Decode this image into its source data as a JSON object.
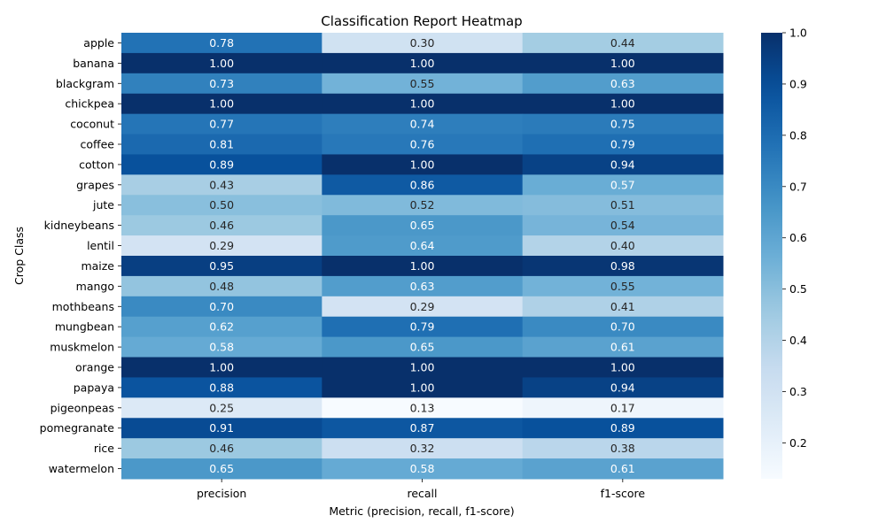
{
  "chart_data": {
    "type": "heatmap",
    "title": "Classification Report Heatmap",
    "xlabel": "Metric (precision, recall, f1-score)",
    "ylabel": "Crop Class",
    "columns": [
      "precision",
      "recall",
      "f1-score"
    ],
    "rows": [
      "apple",
      "banana",
      "blackgram",
      "chickpea",
      "coconut",
      "coffee",
      "cotton",
      "grapes",
      "jute",
      "kidneybeans",
      "lentil",
      "maize",
      "mango",
      "mothbeans",
      "mungbean",
      "muskmelon",
      "orange",
      "papaya",
      "pigeonpeas",
      "pomegranate",
      "rice",
      "watermelon"
    ],
    "values": [
      [
        0.78,
        0.3,
        0.44
      ],
      [
        1.0,
        1.0,
        1.0
      ],
      [
        0.73,
        0.55,
        0.63
      ],
      [
        1.0,
        1.0,
        1.0
      ],
      [
        0.77,
        0.74,
        0.75
      ],
      [
        0.81,
        0.76,
        0.79
      ],
      [
        0.89,
        1.0,
        0.94
      ],
      [
        0.43,
        0.86,
        0.57
      ],
      [
        0.5,
        0.52,
        0.51
      ],
      [
        0.46,
        0.65,
        0.54
      ],
      [
        0.29,
        0.64,
        0.4
      ],
      [
        0.95,
        1.0,
        0.98
      ],
      [
        0.48,
        0.63,
        0.55
      ],
      [
        0.7,
        0.29,
        0.41
      ],
      [
        0.62,
        0.79,
        0.7
      ],
      [
        0.58,
        0.65,
        0.61
      ],
      [
        1.0,
        1.0,
        1.0
      ],
      [
        0.88,
        1.0,
        0.94
      ],
      [
        0.25,
        0.13,
        0.17
      ],
      [
        0.91,
        0.87,
        0.89
      ],
      [
        0.46,
        0.32,
        0.38
      ],
      [
        0.65,
        0.58,
        0.61
      ]
    ],
    "value_format": "2 decimals",
    "colormap": "Blues",
    "colorbar": {
      "min": 0.13,
      "max": 1.0,
      "ticks": [
        "0.2",
        "0.3",
        "0.4",
        "0.5",
        "0.6",
        "0.7",
        "0.8",
        "0.9",
        "1.0"
      ]
    },
    "grid": false,
    "legend": "colorbar right"
  }
}
